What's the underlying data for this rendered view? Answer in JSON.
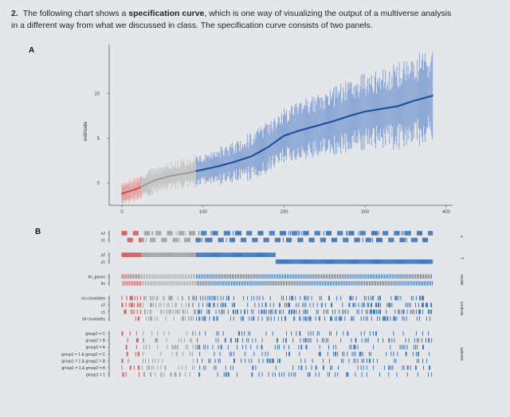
{
  "question": {
    "number": "2.",
    "text_before": "The following chart shows a ",
    "bold_term": "specification curve",
    "text_after": ", which is one way of visualizing the output of a multiverse analysis in a different way from what we discussed in class. The specification curve consists of two panels."
  },
  "panels": {
    "a": "A",
    "b": "B"
  },
  "chart_data": {
    "type": "line",
    "title": "",
    "xlabel": "",
    "ylabel": "estimate",
    "xlim": [
      0,
      400
    ],
    "ylim": [
      -2.5,
      15.5
    ],
    "x_ticks": [
      0,
      100,
      200,
      300,
      400
    ],
    "y_ticks": [
      0,
      5,
      10
    ],
    "n_specifications": 384,
    "curve": {
      "x": [
        0,
        20,
        40,
        60,
        80,
        100,
        120,
        140,
        160,
        180,
        200,
        220,
        240,
        260,
        280,
        300,
        320,
        340,
        360,
        384
      ],
      "y": [
        -1.2,
        -0.6,
        0.3,
        0.8,
        1.1,
        1.5,
        1.9,
        2.4,
        3.0,
        4.0,
        5.3,
        5.9,
        6.4,
        6.9,
        7.5,
        8.0,
        8.3,
        8.6,
        9.2,
        9.8
      ]
    },
    "interval_halfwidth": {
      "x": [
        0,
        100,
        200,
        300,
        384
      ],
      "y": [
        0.9,
        1.3,
        2.2,
        3.0,
        3.8
      ]
    },
    "segments": [
      {
        "name": "significant-negative",
        "from": 0,
        "to": 24,
        "color": "#c9524e"
      },
      {
        "name": "not-significant",
        "from": 24,
        "to": 92,
        "color": "#9e9e9e"
      },
      {
        "name": "significant-positive",
        "from": 92,
        "to": 384,
        "color": "#2f6db5"
      }
    ],
    "facets": [
      {
        "name": "x",
        "rows": [
          "x2",
          "x1"
        ]
      },
      {
        "name": "Y",
        "rows": [
          "y2",
          "y1"
        ]
      },
      {
        "name": "model",
        "rows": [
          "lm_gauss",
          "lm"
        ]
      },
      {
        "name": "controls",
        "rows": [
          "no covariates",
          "c2",
          "c1",
          "all covariates"
        ]
      },
      {
        "name": "subsets",
        "rows": [
          "group2 = C",
          "group2 = B",
          "group2 = A",
          "group1 = 1 & group2 = C",
          "group1 = 1 & group2 = B",
          "group1 = 1 & group2 = A",
          "group1 = 1"
        ]
      }
    ]
  },
  "colors": {
    "background": "#e4e6ea",
    "negative": "#c9524e",
    "neutral": "#9e9e9e",
    "positive": "#2f6db5",
    "curve": "#1e4f9a",
    "interval_positive": "#8ea9d6",
    "interval_neutral": "#c6c6c6",
    "interval_negative": "#e2a3a0"
  }
}
